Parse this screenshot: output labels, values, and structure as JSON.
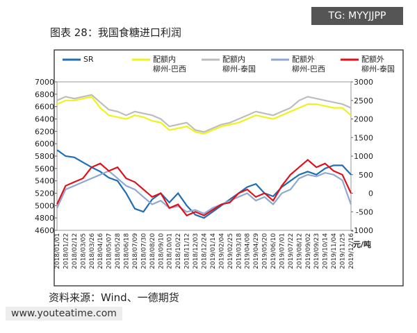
{
  "chart_data": {
    "type": "line",
    "title": "图表 28：我国食糖进口利润",
    "source": "资料来源：Wind、一德期货",
    "y2_unit": "元/吨",
    "legend": "top",
    "categories": [
      "2018/01/01",
      "2018/01/22",
      "2018/02/12",
      "2018/03/05",
      "2018/03/26",
      "2018/04/16",
      "2018/05/07",
      "2018/05/28",
      "2018/06/18",
      "2018/07/09",
      "2018/07/30",
      "2018/08/20",
      "2018/09/10",
      "2018/10/01",
      "2018/10/22",
      "2018/11/12",
      "2018/12/03",
      "2018/12/24",
      "2019/01/14",
      "2019/02/04",
      "2019/02/25",
      "2019/03/18",
      "2019/04/08",
      "2019/04/29",
      "2019/05/20",
      "2019/06/10",
      "2019/07/01",
      "2019/07/22",
      "2019/08/12",
      "2019/09/02",
      "2019/09/23",
      "2019/10/14",
      "2019/11/04",
      "2019/11/25",
      "2019/12/16"
    ],
    "ylim": [
      4600,
      7000
    ],
    "yticks": [
      4600,
      4800,
      5000,
      5200,
      5400,
      5600,
      5800,
      6000,
      6200,
      6400,
      6600,
      6800,
      7000
    ],
    "y2lim": [
      -1000,
      3000
    ],
    "y2ticks": [
      -1000,
      -500,
      0,
      500,
      1000,
      1500,
      2000,
      2500,
      3000
    ],
    "series": [
      {
        "name": "SR",
        "color": "#1f6db4",
        "values": [
          5900,
          5800,
          5780,
          5700,
          5620,
          5550,
          5450,
          5400,
          5200,
          4950,
          4900,
          5100,
          5200,
          5050,
          5200,
          5000,
          4850,
          4800,
          4900,
          5000,
          5100,
          5200,
          5300,
          5350,
          5200,
          5150,
          5300,
          5400,
          5500,
          5550,
          5500,
          5600,
          5650,
          5650,
          5500
        ]
      },
      {
        "name": "配额内\n柳州-巴西",
        "color": "#f2f21a",
        "axis": "y2",
        "values": [
          2400,
          2500,
          2500,
          2550,
          2600,
          2300,
          2100,
          2050,
          2000,
          2100,
          2050,
          1950,
          1900,
          1700,
          1750,
          1800,
          1650,
          1600,
          1700,
          1800,
          1850,
          1900,
          2000,
          2100,
          2050,
          2000,
          2100,
          2200,
          2300,
          2400,
          2400,
          2350,
          2300,
          2300,
          2100
        ]
      },
      {
        "name": "配额内\n柳州-泰国",
        "color": "#bdbdbd",
        "axis": "y2",
        "values": [
          2500,
          2600,
          2550,
          2600,
          2650,
          2450,
          2250,
          2200,
          2100,
          2200,
          2150,
          2100,
          2000,
          1800,
          1850,
          1900,
          1700,
          1650,
          1750,
          1850,
          1900,
          2000,
          2100,
          2200,
          2150,
          2100,
          2200,
          2300,
          2500,
          2600,
          2550,
          2500,
          2450,
          2400,
          2300
        ]
      },
      {
        "name": "配额外\n柳州-巴西",
        "color": "#8ea8d2",
        "axis": "y2",
        "values": [
          -400,
          100,
          200,
          300,
          400,
          500,
          600,
          400,
          200,
          100,
          -100,
          -300,
          -200,
          -400,
          -350,
          -500,
          -450,
          -550,
          -400,
          -300,
          -200,
          -100,
          0,
          -200,
          -100,
          -300,
          0,
          100,
          400,
          500,
          450,
          550,
          500,
          350,
          -300
        ]
      },
      {
        "name": "配额外\n柳州-泰国",
        "color": "#e0101a",
        "axis": "y2",
        "values": [
          -300,
          200,
          300,
          400,
          700,
          800,
          600,
          700,
          400,
          300,
          100,
          -100,
          0,
          -400,
          -300,
          -600,
          -500,
          -600,
          -450,
          -300,
          -250,
          0,
          100,
          -100,
          0,
          -200,
          200,
          500,
          700,
          900,
          700,
          800,
          600,
          500,
          0
        ]
      }
    ]
  },
  "watermarks": {
    "top": "TG: MYYJJPP",
    "bottom": "www.youteatime.com"
  }
}
